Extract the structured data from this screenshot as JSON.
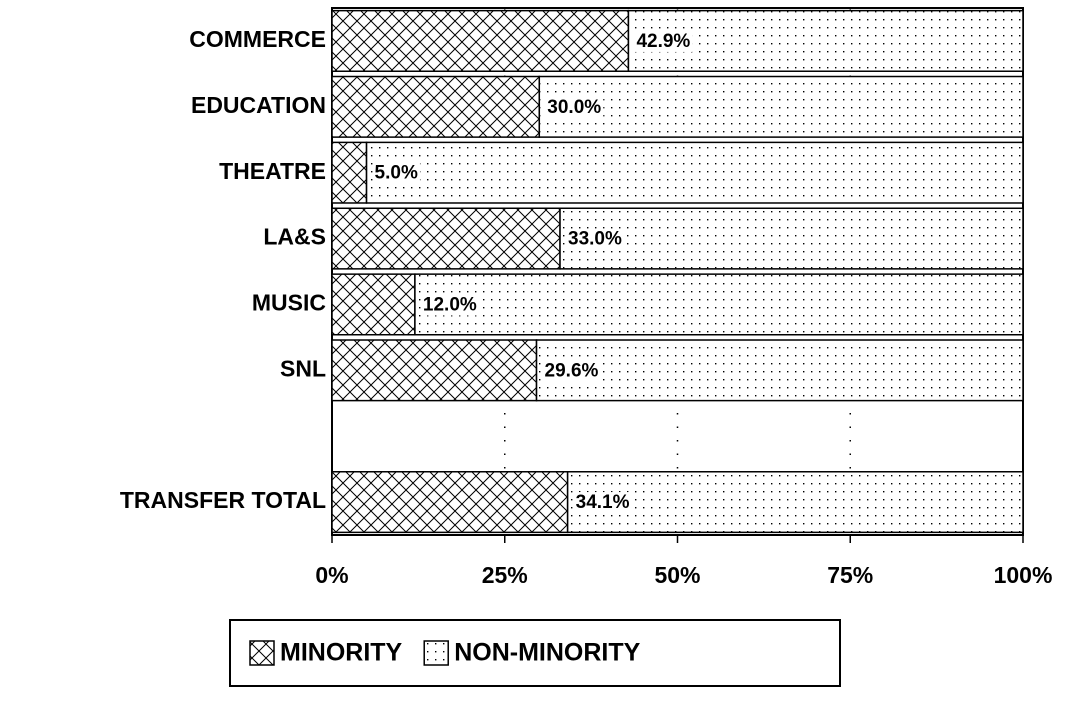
{
  "chart_data": {
    "type": "stacked-barh",
    "categories": [
      "COMMERCE",
      "EDUCATION",
      "THEATRE",
      "LA&S",
      "MUSIC",
      "SNL",
      null,
      "TRANSFER TOTAL"
    ],
    "series": [
      {
        "name": "MINORITY",
        "color": "#000000",
        "pattern": "crosshatch",
        "values": [
          42.9,
          30.0,
          5.0,
          33.0,
          12.0,
          29.6,
          null,
          34.1
        ],
        "value_labels": [
          "42.9%",
          "30.0%",
          "5.0%",
          "33.0%",
          "12.0%",
          "29.6%",
          null,
          "34.1%"
        ]
      },
      {
        "name": "NON-MINORITY",
        "color": "#000000",
        "pattern": "dots",
        "values": [
          57.1,
          70.0,
          95.0,
          67.0,
          88.0,
          70.4,
          null,
          65.9
        ]
      }
    ],
    "xlim": [
      0,
      100
    ],
    "xticks": [
      {
        "value": 0,
        "label": "0%"
      },
      {
        "value": 25,
        "label": "25%"
      },
      {
        "value": 50,
        "label": "50%"
      },
      {
        "value": 75,
        "label": "75%"
      },
      {
        "value": 100,
        "label": "100%"
      }
    ],
    "grid": true,
    "legend": "bottom"
  }
}
